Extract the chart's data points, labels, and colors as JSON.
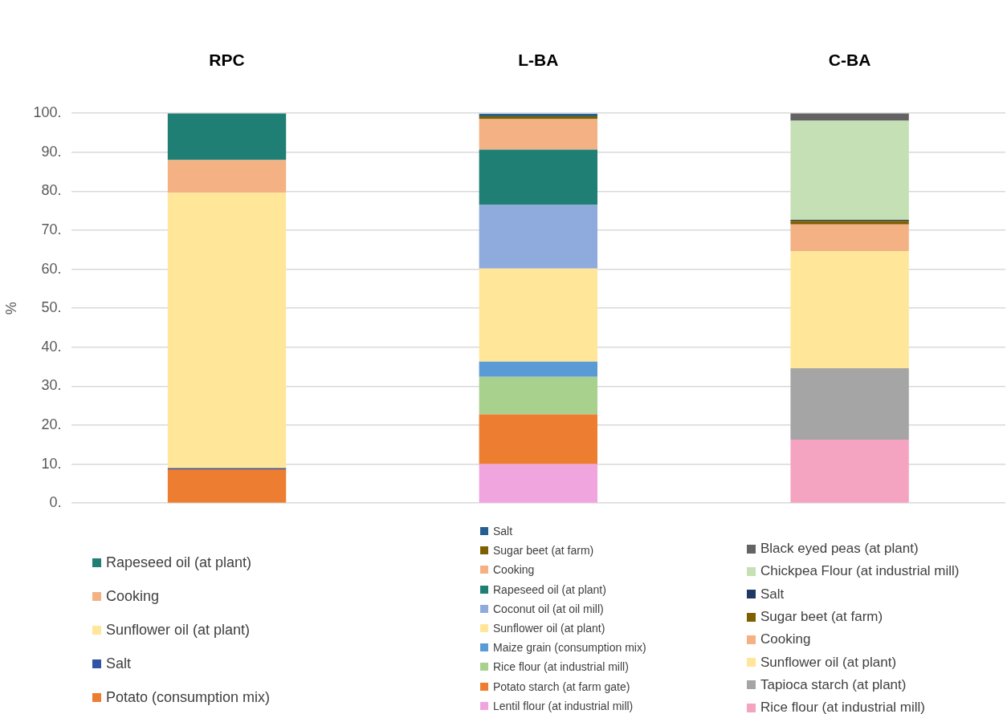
{
  "chart_data": {
    "type": "bar",
    "ylabel": "%",
    "categories": [
      "RPC",
      "L-BA",
      "C-BA"
    ],
    "stacked": true,
    "ylim": [
      0,
      100
    ],
    "yticks": [
      {
        "value": 0,
        "label": "0."
      },
      {
        "value": 10,
        "label": "10."
      },
      {
        "value": 20,
        "label": "20."
      },
      {
        "value": 30,
        "label": "30."
      },
      {
        "value": 40,
        "label": "40."
      },
      {
        "value": 50,
        "label": "50."
      },
      {
        "value": 60,
        "label": "60."
      },
      {
        "value": 70,
        "label": "70."
      },
      {
        "value": 80,
        "label": "80."
      },
      {
        "value": 90,
        "label": "90."
      },
      {
        "value": 100,
        "label": "100."
      }
    ],
    "grid": "y",
    "legend": "bottom",
    "series": [
      {
        "name": "Potato (consumption mix)",
        "color": "#ed7d31",
        "values": [
          8.7,
          null,
          null
        ]
      },
      {
        "name": "Salt",
        "color": "#2f55a4",
        "values": [
          0.3,
          null,
          null
        ]
      },
      {
        "name": "Sunflower oil (at plant)",
        "color": "#ffe699",
        "values": [
          70.6,
          null,
          null
        ]
      },
      {
        "name": "Cooking",
        "color": "#f4b183",
        "values": [
          8.4,
          null,
          null
        ]
      },
      {
        "name": "Rapeseed oil (at plant)",
        "color": "#1f7f74",
        "values": [
          12.0,
          null,
          null
        ]
      },
      {
        "name": "Lentil flour (at industrial mill)",
        "color": "#f0a5de",
        "values": [
          null,
          10.0,
          null
        ]
      },
      {
        "name": "Potato starch (at farm gate)",
        "color": "#ed7d31",
        "values": [
          null,
          12.8,
          null
        ]
      },
      {
        "name": "Rice flour (at industrial mill)",
        "color": "#a9d18e",
        "values": [
          null,
          9.6,
          null
        ]
      },
      {
        "name": "Maize grain (consumption mix)",
        "color": "#5b9bd5",
        "values": [
          null,
          3.9,
          null
        ]
      },
      {
        "name": "Sunflower oil (at plant)",
        "color": "#ffe699",
        "values": [
          null,
          23.9,
          null
        ]
      },
      {
        "name": "Coconut oil (at oil mill)",
        "color": "#8faadc",
        "values": [
          null,
          16.3,
          null
        ]
      },
      {
        "name": "Rapeseed oil (at plant)",
        "color": "#1f7f74",
        "values": [
          null,
          14.2,
          null
        ]
      },
      {
        "name": "Cooking",
        "color": "#f4b183",
        "values": [
          null,
          7.8,
          null
        ]
      },
      {
        "name": "Sugar beet (at farm)",
        "color": "#7f6000",
        "values": [
          null,
          0.7,
          null
        ]
      },
      {
        "name": "Salt",
        "color": "#255e91",
        "values": [
          null,
          0.7,
          null
        ]
      },
      {
        "name": "Rice flour (at industrial mill)",
        "color": "#f4a3c0",
        "values": [
          null,
          null,
          16.3
        ]
      },
      {
        "name": "Tapioca starch (at plant)",
        "color": "#a5a5a5",
        "values": [
          null,
          null,
          18.3
        ]
      },
      {
        "name": "Sunflower oil (at plant)",
        "color": "#ffe699",
        "values": [
          null,
          null,
          30.0
        ]
      },
      {
        "name": "Cooking",
        "color": "#f4b183",
        "values": [
          null,
          null,
          6.9
        ]
      },
      {
        "name": "Sugar beet (at farm)",
        "color": "#7f6000",
        "values": [
          null,
          null,
          0.9
        ]
      },
      {
        "name": "Salt",
        "color": "#203864",
        "values": [
          null,
          null,
          0.3
        ]
      },
      {
        "name": "Chickpea Flour (at industrial mill)",
        "color": "#c5e0b4",
        "values": [
          null,
          null,
          25.4
        ]
      },
      {
        "name": "Black eyed peas (at plant)",
        "color": "#636363",
        "values": [
          null,
          null,
          1.9
        ]
      }
    ]
  }
}
